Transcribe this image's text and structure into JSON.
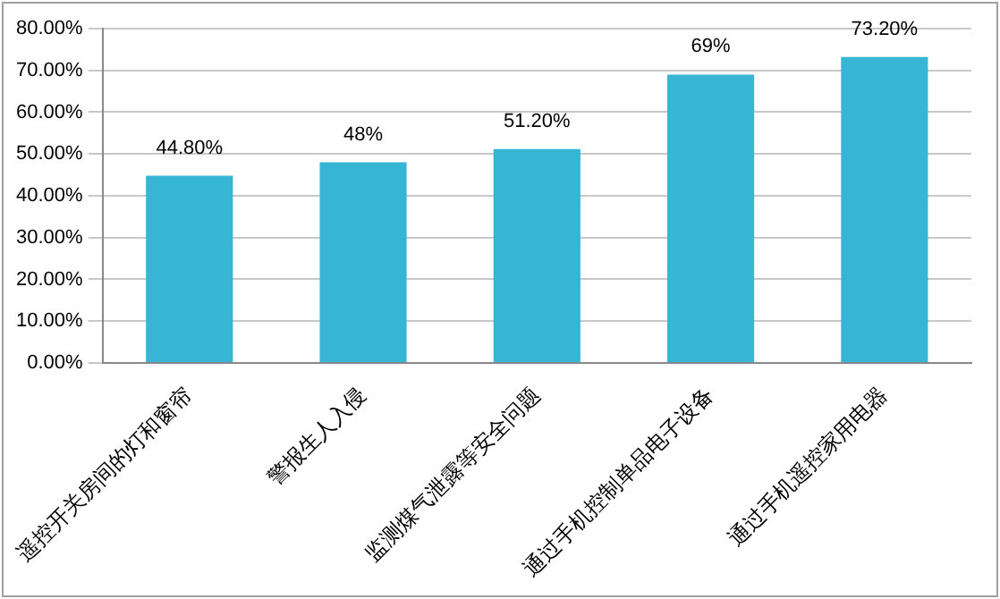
{
  "chart_data": {
    "type": "bar",
    "categories": [
      "遥控开关房间的灯和窗帘",
      "警报生人入侵",
      "监测煤气泄露等安全问题",
      "通过手机控制单品电子设备",
      "通过手机遥控家用电器"
    ],
    "values": [
      44.8,
      48,
      51.2,
      69,
      73.2
    ],
    "value_labels": [
      "44.80%",
      "48%",
      "51.20%",
      "69%",
      "73.20%"
    ],
    "color": "#36b5d5",
    "ylim": [
      0,
      80
    ],
    "yticks": [
      {
        "value": 0,
        "label": "0.00%"
      },
      {
        "value": 10,
        "label": "10.00%"
      },
      {
        "value": 20,
        "label": "20.00%"
      },
      {
        "value": 30,
        "label": "30.00%"
      },
      {
        "value": 40,
        "label": "40.00%"
      },
      {
        "value": 50,
        "label": "50.00%"
      },
      {
        "value": 60,
        "label": "60.00%"
      },
      {
        "value": 70,
        "label": "70.00%"
      },
      {
        "value": 80,
        "label": "80.00%"
      }
    ],
    "grid": "y",
    "legend": false
  }
}
